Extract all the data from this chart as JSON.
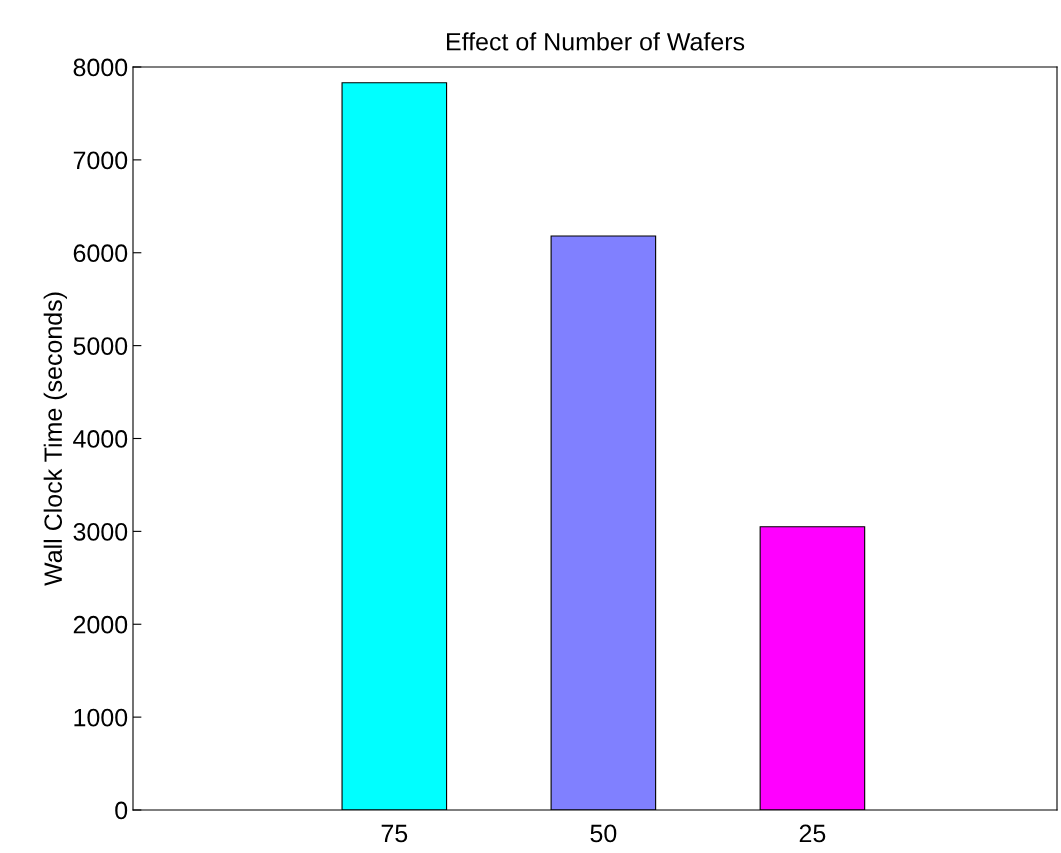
{
  "chart_data": {
    "type": "bar",
    "title": "Effect of Number of Wafers",
    "ylabel": "Wall Clock Time (seconds)",
    "categories": [
      "75",
      "50",
      "25"
    ],
    "values": [
      7830,
      6180,
      3050
    ],
    "colors": [
      "#00ffff",
      "#8080ff",
      "#ff00ff"
    ],
    "ylim": [
      0,
      8000
    ],
    "yticks": [
      0,
      1000,
      2000,
      3000,
      4000,
      5000,
      6000,
      7000,
      8000
    ],
    "grid": false
  }
}
